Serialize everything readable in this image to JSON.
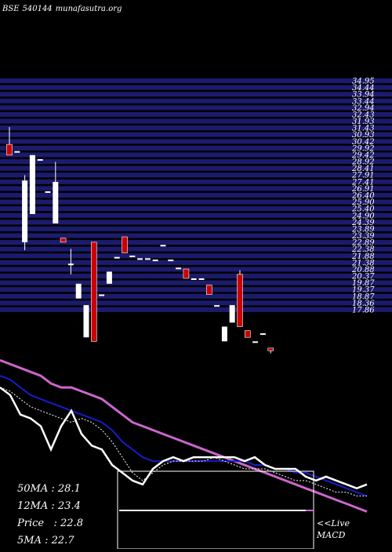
{
  "header": {
    "exchange": "BSE",
    "code": "540144",
    "site": "munafasutra.org"
  },
  "stats": [
    {
      "label": "50MA",
      "sep": " : ",
      "value": "28.1"
    },
    {
      "label": "12MA",
      "sep": " : ",
      "value": "23.4"
    },
    {
      "label": "Price",
      "sep": "   : ",
      "value": "22.8"
    },
    {
      "label": "5MA",
      "sep": " : ",
      "value": "22.7"
    }
  ],
  "macd": {
    "line1": "<<Live",
    "line2": "MACD"
  },
  "colors": {
    "background": "#000000",
    "price_band": "#1b1b6e",
    "up_candle": "#ffffff",
    "down_candle": "#cc0000",
    "ma_long": "#cc66cc",
    "ma_mid": "#1a1acc",
    "ma_short": "#ffffff"
  },
  "chart_data": {
    "type": "candlestick",
    "price_axis_labels": [
      "34.95",
      "34.44",
      "33.94",
      "33.44",
      "32.94",
      "32.43",
      "31.93",
      "31.43",
      "30.93",
      "30.42",
      "29.92",
      "29.42",
      "28.92",
      "28.41",
      "27.91",
      "27.41",
      "26.91",
      "26.40",
      "25.90",
      "25.40",
      "24.90",
      "24.39",
      "23.89",
      "23.39",
      "22.89",
      "22.38",
      "21.88",
      "21.38",
      "20.88",
      "20.37",
      "19.87",
      "19.37",
      "18.87",
      "18.36",
      "17.86"
    ],
    "candles": [
      {
        "open": 30.2,
        "close": 29.4,
        "high": 31.5,
        "low": 29.4
      },
      {
        "open": 29.7,
        "close": 29.7,
        "high": 29.7,
        "low": 29.7
      },
      {
        "open": 22.9,
        "close": 27.5,
        "high": 27.9,
        "low": 22.3
      },
      {
        "open": 25.0,
        "close": 29.4,
        "high": 29.4,
        "low": 25.0
      },
      {
        "open": 29.1,
        "close": 29.1,
        "high": 29.1,
        "low": 29.1
      },
      {
        "open": 26.7,
        "close": 26.7,
        "high": 26.7,
        "low": 26.7
      },
      {
        "open": 24.3,
        "close": 27.4,
        "high": 28.9,
        "low": 24.3
      },
      {
        "open": 23.2,
        "close": 22.9,
        "high": 23.2,
        "low": 22.9
      },
      {
        "open": 21.3,
        "close": 21.3,
        "high": 22.4,
        "low": 20.5
      },
      {
        "open": 18.7,
        "close": 19.8,
        "high": 19.8,
        "low": 18.7
      },
      {
        "open": 15.8,
        "close": 18.2,
        "high": 18.2,
        "low": 15.8
      },
      {
        "open": 22.9,
        "close": 15.5,
        "high": 22.9,
        "low": 15.5
      },
      {
        "open": 19.0,
        "close": 19.0,
        "high": 19.0,
        "low": 19.0
      },
      {
        "open": 19.8,
        "close": 20.7,
        "high": 20.7,
        "low": 19.8
      },
      {
        "open": 21.8,
        "close": 21.8,
        "high": 21.8,
        "low": 21.8
      },
      {
        "open": 23.3,
        "close": 22.1,
        "high": 23.3,
        "low": 22.1
      },
      {
        "open": 21.9,
        "close": 21.9,
        "high": 21.9,
        "low": 21.9
      },
      {
        "open": 21.7,
        "close": 21.7,
        "high": 21.7,
        "low": 21.7
      },
      {
        "open": 21.7,
        "close": 21.7,
        "high": 21.7,
        "low": 21.7
      },
      {
        "open": 21.6,
        "close": 21.6,
        "high": 21.6,
        "low": 21.6
      },
      {
        "open": 22.7,
        "close": 22.7,
        "high": 22.7,
        "low": 22.7
      },
      {
        "open": 21.6,
        "close": 21.6,
        "high": 21.6,
        "low": 21.6
      },
      {
        "open": 21.0,
        "close": 21.0,
        "high": 21.0,
        "low": 21.0
      },
      {
        "open": 20.9,
        "close": 20.2,
        "high": 20.9,
        "low": 20.2
      },
      {
        "open": 20.2,
        "close": 20.2,
        "high": 20.2,
        "low": 20.2
      },
      {
        "open": 20.2,
        "close": 20.2,
        "high": 20.2,
        "low": 20.2
      },
      {
        "open": 19.7,
        "close": 19.0,
        "high": 19.7,
        "low": 19.0
      },
      {
        "open": 18.2,
        "close": 18.2,
        "high": 18.2,
        "low": 18.2
      },
      {
        "open": 15.5,
        "close": 16.6,
        "high": 16.6,
        "low": 15.5
      },
      {
        "open": 16.9,
        "close": 18.2,
        "high": 18.2,
        "low": 16.9
      },
      {
        "open": 20.5,
        "close": 16.6,
        "high": 20.8,
        "low": 16.6
      },
      {
        "open": 16.3,
        "close": 15.8,
        "high": 16.3,
        "low": 15.8
      },
      {
        "open": 15.5,
        "close": 15.5,
        "high": 15.5,
        "low": 15.5
      },
      {
        "open": 16.1,
        "close": 16.1,
        "high": 16.1,
        "low": 16.1
      },
      {
        "open": 15.0,
        "close": 14.8,
        "high": 15.0,
        "low": 14.6
      }
    ],
    "indicators": [
      {
        "id": "ma_long",
        "values": [
          94.0,
          93.5,
          93.0,
          92.5,
          92.0,
          91.0,
          90.5,
          90.5,
          90.0,
          89.5,
          89.0,
          88.0,
          87.0,
          86.0,
          85.5,
          85.0,
          84.5,
          84.0,
          83.5,
          83.0,
          82.5,
          82.0,
          81.5,
          81.0,
          80.5,
          80.0,
          79.5,
          79.0,
          78.5,
          78.0,
          77.5,
          77.0,
          76.5,
          76.0,
          75.5,
          75.0,
          74.5
        ]
      },
      {
        "id": "ma_mid",
        "values": [
          92.0,
          91.5,
          90.5,
          89.5,
          89.0,
          88.5,
          88.0,
          87.5,
          87.0,
          86.5,
          86.0,
          85.0,
          83.5,
          82.5,
          81.5,
          81.0,
          81.0,
          81.0,
          81.0,
          81.0,
          81.0,
          81.0,
          81.0,
          81.0,
          81.0,
          80.5,
          80.5,
          80.0,
          80.0,
          79.5,
          79.5,
          79.0,
          78.5,
          78.0,
          77.5,
          77.0,
          76.5
        ]
      },
      {
        "id": "ma_short",
        "values": [
          90.5,
          90.0,
          89.0,
          88.0,
          87.5,
          87.0,
          86.5,
          86.0,
          86.5,
          86.0,
          85.0,
          83.5,
          81.5,
          79.5,
          78.5,
          79.5,
          80.5,
          81.0,
          81.0,
          81.0,
          81.0,
          81.5,
          81.0,
          80.5,
          80.0,
          80.0,
          80.0,
          79.5,
          79.0,
          78.5,
          78.5,
          78.0,
          77.5,
          77.0,
          77.0,
          76.5,
          76.5
        ]
      },
      {
        "id": "price_line",
        "values": [
          90.5,
          89.5,
          87.0,
          86.5,
          85.5,
          82.5,
          85.5,
          87.5,
          84.5,
          83.0,
          82.5,
          80.5,
          79.5,
          78.5,
          78.0,
          80.0,
          81.0,
          81.5,
          81.0,
          81.5,
          81.5,
          81.5,
          81.5,
          81.5,
          81.0,
          81.5,
          80.5,
          80.0,
          80.0,
          80.0,
          79.0,
          78.5,
          79.0,
          78.5,
          78.0,
          77.5,
          78.0
        ]
      }
    ],
    "macd": {
      "line": "flat"
    }
  }
}
